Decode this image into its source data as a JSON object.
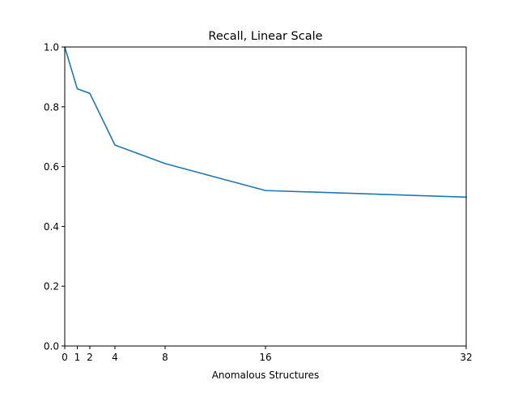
{
  "chart_data": {
    "type": "line",
    "title": "Recall, Linear Scale",
    "xlabel": "Anomalous Structures",
    "ylabel": "",
    "xlim": [
      0,
      32
    ],
    "ylim": [
      0,
      1.0
    ],
    "xticks": [
      0,
      1,
      2,
      4,
      8,
      16,
      32
    ],
    "yticks": [
      0.0,
      0.2,
      0.4,
      0.6,
      0.8,
      1.0
    ],
    "xtick_labels": [
      "0",
      "1",
      "2",
      "4",
      "8",
      "16",
      "32"
    ],
    "ytick_labels": [
      "0.0",
      "0.2",
      "0.4",
      "0.6",
      "0.8",
      "1.0"
    ],
    "grid": false,
    "legend": "none",
    "series": [
      {
        "color": "#1f77b4",
        "x": [
          0,
          1,
          2,
          4,
          8,
          16,
          32
        ],
        "y": [
          1.0,
          0.86,
          0.845,
          0.672,
          0.61,
          0.52,
          0.498
        ]
      }
    ]
  }
}
